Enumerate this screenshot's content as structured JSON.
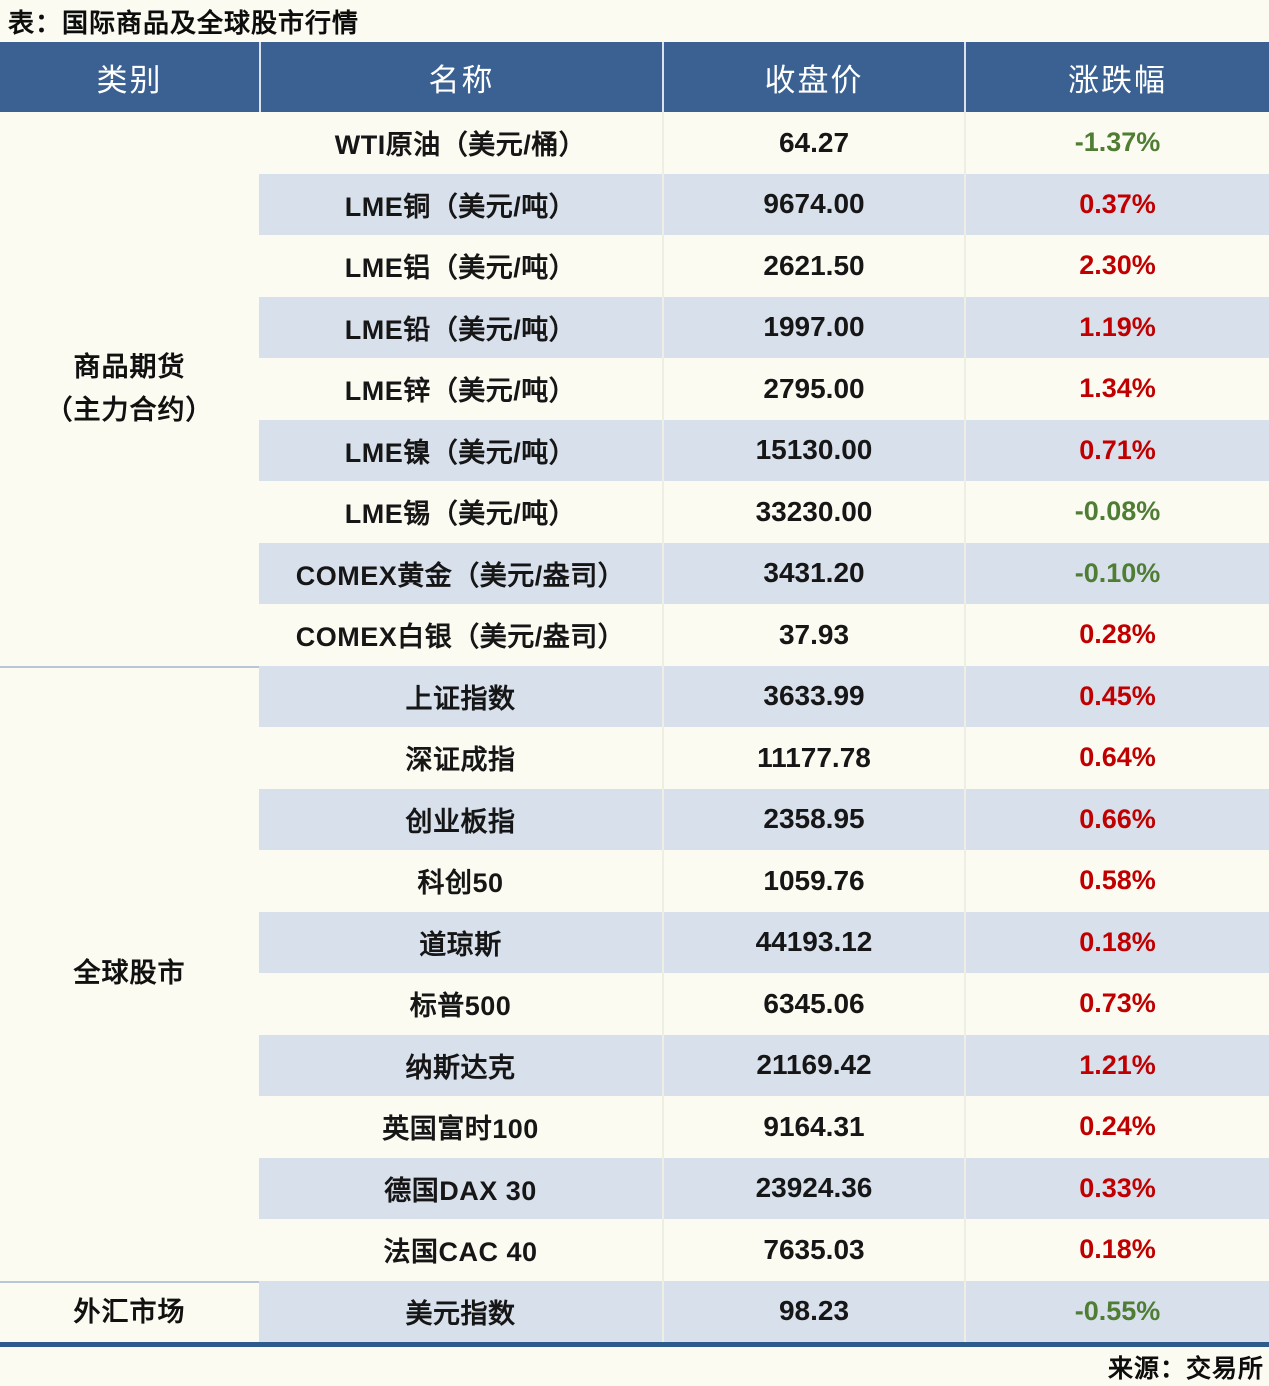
{
  "chart_data": {
    "type": "table",
    "title": "表：国际商品及全球股市行情",
    "source_note": "来源：交易所",
    "headers": [
      "类别",
      "名称",
      "收盘价",
      "涨跌幅"
    ],
    "groups": [
      {
        "category_lines": [
          "商品期货",
          "（主力合约）"
        ],
        "row_count": 9
      },
      {
        "category_lines": [
          "全球股市"
        ],
        "row_count": 10
      },
      {
        "category_lines": [
          "外汇市场"
        ],
        "row_count": 1
      }
    ],
    "rows": [
      {
        "name": "WTI原油（美元/桶）",
        "close": "64.27",
        "change": "-1.37%",
        "direction": "down"
      },
      {
        "name": "LME铜（美元/吨）",
        "close": "9674.00",
        "change": "0.37%",
        "direction": "up"
      },
      {
        "name": "LME铝（美元/吨）",
        "close": "2621.50",
        "change": "2.30%",
        "direction": "up"
      },
      {
        "name": "LME铅（美元/吨）",
        "close": "1997.00",
        "change": "1.19%",
        "direction": "up"
      },
      {
        "name": "LME锌（美元/吨）",
        "close": "2795.00",
        "change": "1.34%",
        "direction": "up"
      },
      {
        "name": "LME镍（美元/吨）",
        "close": "15130.00",
        "change": "0.71%",
        "direction": "up"
      },
      {
        "name": "LME锡（美元/吨）",
        "close": "33230.00",
        "change": "-0.08%",
        "direction": "down"
      },
      {
        "name": "COMEX黄金（美元/盎司）",
        "close": "3431.20",
        "change": "-0.10%",
        "direction": "down"
      },
      {
        "name": "COMEX白银（美元/盎司）",
        "close": "37.93",
        "change": "0.28%",
        "direction": "up"
      },
      {
        "name": "上证指数",
        "close": "3633.99",
        "change": "0.45%",
        "direction": "up"
      },
      {
        "name": "深证成指",
        "close": "11177.78",
        "change": "0.64%",
        "direction": "up"
      },
      {
        "name": "创业板指",
        "close": "2358.95",
        "change": "0.66%",
        "direction": "up"
      },
      {
        "name": "科创50",
        "close": "1059.76",
        "change": "0.58%",
        "direction": "up"
      },
      {
        "name": "道琼斯",
        "close": "44193.12",
        "change": "0.18%",
        "direction": "up"
      },
      {
        "name": "标普500",
        "close": "6345.06",
        "change": "0.73%",
        "direction": "up"
      },
      {
        "name": "纳斯达克",
        "close": "21169.42",
        "change": "1.21%",
        "direction": "up"
      },
      {
        "name": "英国富时100",
        "close": "9164.31",
        "change": "0.24%",
        "direction": "up"
      },
      {
        "name": "德国DAX 30",
        "close": "23924.36",
        "change": "0.33%",
        "direction": "up"
      },
      {
        "name": "法国CAC 40",
        "close": "7635.03",
        "change": "0.18%",
        "direction": "up"
      },
      {
        "name": "美元指数",
        "close": "98.23",
        "change": "-0.55%",
        "direction": "down"
      }
    ],
    "colors": {
      "up_red": "#C00000",
      "down_green": "#4E7D33",
      "header_bg": "#3A6191",
      "header_text": "#FFFFFF",
      "stripe": "#D8E0EC",
      "page_bg": "#FCFBF1",
      "group_divider": "#B9C6D9",
      "bottom_rule": "#2E5B8C"
    },
    "layout_hints": {
      "striped_rows": "even",
      "category_column_grouped": true
    }
  }
}
